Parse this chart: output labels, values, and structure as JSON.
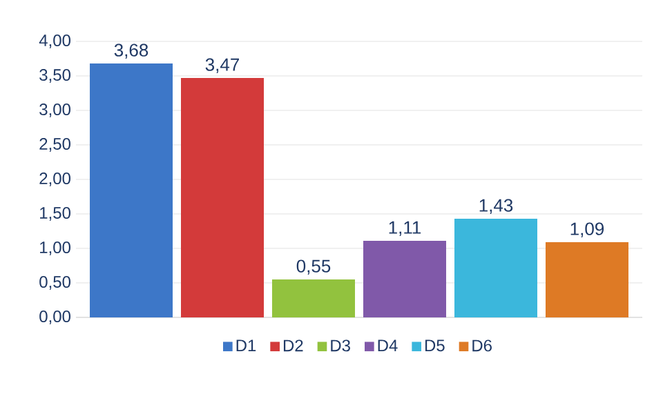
{
  "chart_data": {
    "type": "bar",
    "categories": [
      null
    ],
    "series": [
      {
        "name": "D1",
        "color": "#3d77c8",
        "values": [
          3.68
        ],
        "value_labels": [
          "3,68"
        ]
      },
      {
        "name": "D2",
        "color": "#d33a3a",
        "values": [
          3.47
        ],
        "value_labels": [
          "3,47"
        ]
      },
      {
        "name": "D3",
        "color": "#92c23e",
        "values": [
          0.55
        ],
        "value_labels": [
          "0,55"
        ]
      },
      {
        "name": "D4",
        "color": "#8059a9",
        "values": [
          1.11
        ],
        "value_labels": [
          "1,11"
        ]
      },
      {
        "name": "D5",
        "color": "#3bb7dc",
        "values": [
          1.43
        ],
        "value_labels": [
          "1,43"
        ]
      },
      {
        "name": "D6",
        "color": "#de7a25",
        "values": [
          1.09
        ],
        "value_labels": [
          "1,09"
        ]
      }
    ],
    "ylim": [
      0,
      4
    ],
    "yticks": [
      {
        "value": 0,
        "label": "0,00"
      },
      {
        "value": 0.5,
        "label": "0,50"
      },
      {
        "value": 1,
        "label": "1,00"
      },
      {
        "value": 1.5,
        "label": "1,50"
      },
      {
        "value": 2,
        "label": "2,00"
      },
      {
        "value": 2.5,
        "label": "2,50"
      },
      {
        "value": 3,
        "label": "3,00"
      },
      {
        "value": 3.5,
        "label": "3,50"
      },
      {
        "value": 4,
        "label": "4,00"
      }
    ],
    "grid": "y",
    "legend": "bottom",
    "tick_labels": "y"
  }
}
